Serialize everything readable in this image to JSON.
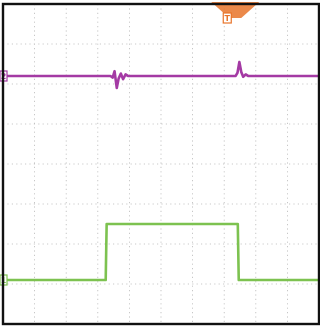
{
  "chart_data": {
    "type": "line",
    "title": "",
    "xlabel": "",
    "ylabel": "",
    "grid": true,
    "x_divisions": 10,
    "y_divisions": 8,
    "xlim": [
      0,
      10
    ],
    "ylim": [
      0,
      8
    ],
    "series": [
      {
        "name": "",
        "color": "#a43aa4",
        "marker": "2",
        "points": [
          [
            0.0,
            6.2
          ],
          [
            3.4,
            6.2
          ],
          [
            3.47,
            6.16
          ],
          [
            3.53,
            6.32
          ],
          [
            3.6,
            5.9
          ],
          [
            3.66,
            6.14
          ],
          [
            3.73,
            6.26
          ],
          [
            3.8,
            6.12
          ],
          [
            3.88,
            6.24
          ],
          [
            3.96,
            6.2
          ],
          [
            7.36,
            6.2
          ],
          [
            7.42,
            6.28
          ],
          [
            7.48,
            6.55
          ],
          [
            7.54,
            6.3
          ],
          [
            7.6,
            6.18
          ],
          [
            7.68,
            6.24
          ],
          [
            7.76,
            6.2
          ],
          [
            10.0,
            6.2
          ]
        ]
      },
      {
        "name": "",
        "color": "#7dc250",
        "marker": "1",
        "points": [
          [
            0.0,
            1.1
          ],
          [
            3.25,
            1.1
          ],
          [
            3.28,
            2.5
          ],
          [
            7.43,
            2.5
          ],
          [
            7.46,
            1.1
          ],
          [
            10.0,
            1.1
          ]
        ]
      }
    ],
    "trigger": {
      "x": 7.35,
      "color": "#e8742a"
    },
    "time_marker": {
      "x": 7.35,
      "label": "T",
      "color": "#e8742a"
    }
  }
}
